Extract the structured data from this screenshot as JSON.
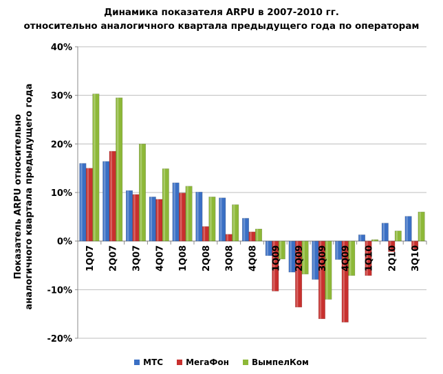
{
  "chart_data": {
    "type": "bar",
    "title": "Динамика показателя ARPU в 2007-2010 гг.",
    "subtitle": "относительно аналогичного квартала предыдущего года по операторам",
    "xlabel": "",
    "ylabel_line1": "Показатель ARPU относительно",
    "ylabel_line2": "аналогичного квартала предыдущего года",
    "ylim": [
      -20,
      40
    ],
    "yticks": [
      -20,
      -10,
      0,
      10,
      20,
      30,
      40
    ],
    "ytick_labels": [
      "-20%",
      "-10%",
      "0%",
      "10%",
      "20%",
      "30%",
      "40%"
    ],
    "grid": true,
    "legend_position": "bottom",
    "categories": [
      "1Q07",
      "2Q07",
      "3Q07",
      "4Q07",
      "1Q08",
      "2Q08",
      "3Q08",
      "4Q08",
      "1Q09",
      "2Q09",
      "3Q09",
      "4Q09",
      "1Q10",
      "2Q10",
      "3Q10"
    ],
    "series": [
      {
        "name": "МТС",
        "color": "#3a6fc4",
        "values": [
          16.0,
          16.4,
          10.4,
          9.1,
          12.0,
          10.1,
          8.9,
          4.7,
          -3.0,
          -6.4,
          -7.9,
          -3.8,
          1.3,
          3.7,
          5.1
        ]
      },
      {
        "name": "МегаФон",
        "color": "#c8302e",
        "values": [
          15.0,
          18.5,
          9.6,
          8.6,
          9.9,
          3.0,
          1.4,
          1.9,
          -10.3,
          -13.6,
          -16.0,
          -16.7,
          -7.1,
          -2.2,
          -1.7
        ]
      },
      {
        "name": "ВымпелКом",
        "color": "#8db838",
        "values": [
          30.3,
          29.5,
          20.0,
          14.9,
          11.3,
          9.1,
          7.5,
          2.5,
          -3.7,
          -6.8,
          -12.0,
          -7.1,
          0.3,
          2.1,
          6.0
        ]
      }
    ]
  }
}
